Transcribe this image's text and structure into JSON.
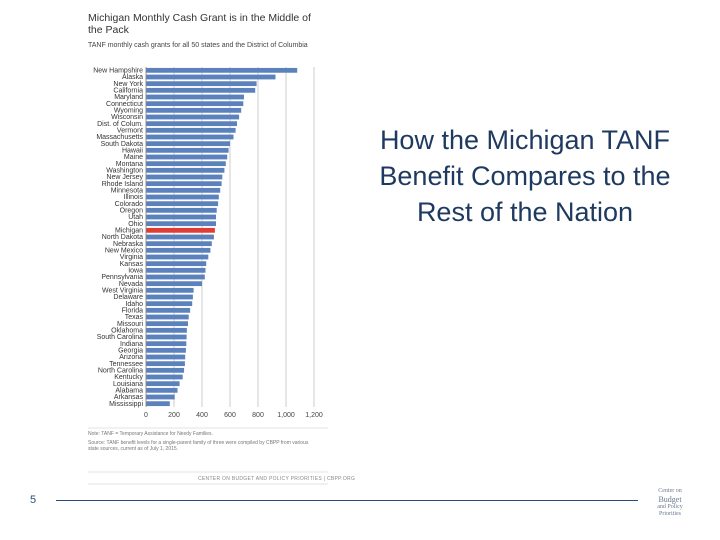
{
  "slide": {
    "title": "How the Michigan TANF Benefit Compares to the Rest of the Nation",
    "page_number": "5",
    "footnote_1": "Note: TANF = Temporary Assistance for Needy Families.",
    "footnote_2": "Source: TANF benefit levels for a single-parent family of three were compiled by CBPP from various",
    "footnote_3": "state sources, current as of July 1, 2015.",
    "source_line": "CENTER ON BUDGET AND POLICY PRIORITIES | CBPP.ORG",
    "logo_lines": [
      "Center on",
      "Budget",
      "and Policy",
      "Priorities"
    ]
  },
  "colors": {
    "bar": "#5b82bd",
    "highlight": "#e03c31",
    "title_text": "#1f3a60",
    "footer_rule": "#2b4c7e"
  },
  "chart_data": {
    "type": "bar",
    "orientation": "horizontal",
    "title": "Michigan Monthly Cash Grant is in the Middle of the Pack",
    "subtitle": "TANF monthly cash grants for all 50 states and the District of Columbia",
    "xlim": [
      0,
      1200
    ],
    "xticks": [
      0,
      200,
      400,
      600,
      800,
      1000,
      1200
    ],
    "xtick_labels": [
      "0",
      "200",
      "400",
      "600",
      "800",
      "1,000",
      "1,200"
    ],
    "grid": "vertical",
    "highlight": "Michigan",
    "categories": [
      "New Hampshire",
      "Alaska",
      "New York",
      "California",
      "Maryland",
      "Connecticut",
      "Wyoming",
      "Wisconsin",
      "Dist. of Colum.",
      "Vermont",
      "Massachusetts",
      "South Dakota",
      "Hawaii",
      "Maine",
      "Montana",
      "Washington",
      "New Jersey",
      "Rhode Island",
      "Minnesota",
      "Illinois",
      "Colorado",
      "Oregon",
      "Utah",
      "Ohio",
      "Michigan",
      "North Dakota",
      "Nebraska",
      "New Mexico",
      "Virginia",
      "Kansas",
      "Iowa",
      "Pennsylvania",
      "Nevada",
      "West Virginia",
      "Delaware",
      "Idaho",
      "Florida",
      "Texas",
      "Missouri",
      "Oklahoma",
      "South Carolina",
      "Indiana",
      "Georgia",
      "Arizona",
      "Tennessee",
      "North Carolina",
      "Kentucky",
      "Louisiana",
      "Alabama",
      "Arkansas",
      "Mississippi"
    ],
    "values": [
      1080,
      925,
      790,
      780,
      700,
      695,
      680,
      665,
      650,
      640,
      625,
      600,
      590,
      580,
      570,
      560,
      545,
      540,
      530,
      520,
      515,
      505,
      500,
      500,
      492,
      485,
      470,
      460,
      445,
      430,
      425,
      420,
      400,
      340,
      335,
      330,
      315,
      305,
      300,
      292,
      290,
      288,
      285,
      280,
      278,
      272,
      262,
      240,
      225,
      205,
      170
    ]
  }
}
